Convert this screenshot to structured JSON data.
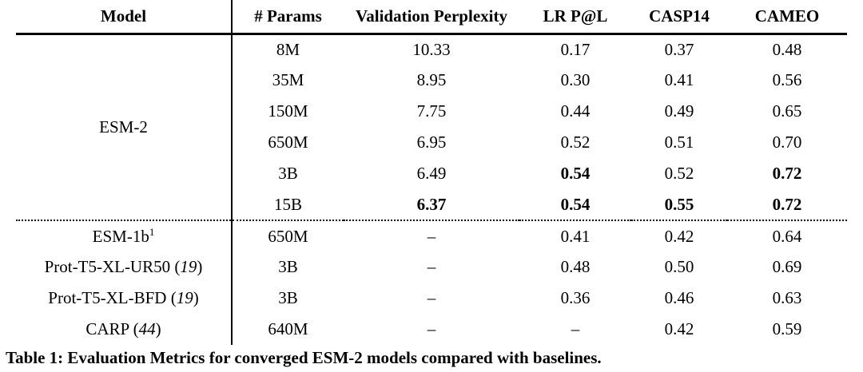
{
  "table": {
    "columns": [
      "Model",
      "# Params",
      "Validation Perplexity",
      "LR P@L",
      "CASP14",
      "CAMEO"
    ],
    "esm2": {
      "label": "ESM-2",
      "rows": [
        {
          "params": "8M",
          "ppl": "10.33",
          "lr": "0.17",
          "casp": "0.37",
          "cameo": "0.48"
        },
        {
          "params": "35M",
          "ppl": "8.95",
          "lr": "0.30",
          "casp": "0.41",
          "cameo": "0.56"
        },
        {
          "params": "150M",
          "ppl": "7.75",
          "lr": "0.44",
          "casp": "0.49",
          "cameo": "0.65"
        },
        {
          "params": "650M",
          "ppl": "6.95",
          "lr": "0.52",
          "casp": "0.51",
          "cameo": "0.70"
        },
        {
          "params": "3B",
          "ppl": "6.49",
          "lr": "0.54",
          "casp": "0.52",
          "cameo": "0.72"
        },
        {
          "params": "15B",
          "ppl": "6.37",
          "lr": "0.54",
          "casp": "0.55",
          "cameo": "0.72"
        }
      ]
    },
    "baselines": [
      {
        "model": "ESM-1b",
        "sup": "1",
        "params": "650M",
        "ppl": "–",
        "lr": "0.41",
        "casp": "0.42",
        "cameo": "0.64"
      },
      {
        "model_pre": "Prot-T5-XL-UR50 (",
        "ref": "19",
        "model_post": ")",
        "params": "3B",
        "ppl": "–",
        "lr": "0.48",
        "casp": "0.50",
        "cameo": "0.69"
      },
      {
        "model_pre": "Prot-T5-XL-BFD (",
        "ref": "19",
        "model_post": ")",
        "params": "3B",
        "ppl": "–",
        "lr": "0.36",
        "casp": "0.46",
        "cameo": "0.63"
      },
      {
        "model_pre": "CARP (",
        "ref": "44",
        "model_post": ")",
        "params": "640M",
        "ppl": "–",
        "lr": "–",
        "casp": "0.42",
        "cameo": "0.59"
      }
    ]
  },
  "caption": "Table 1: Evaluation Metrics for converged ESM-2 models compared with baselines."
}
